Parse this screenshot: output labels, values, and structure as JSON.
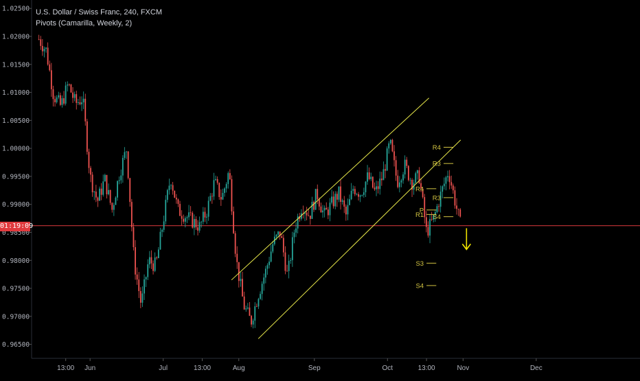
{
  "header": {
    "symbol_title": "U.S. Dollar / Swiss Franc, 240, FXCM",
    "indicator_title": "Pivots (Camarilla, Weekly, 2)"
  },
  "price_label": "01:19:09",
  "colors": {
    "background": "#000000",
    "candle_up": "#26a69a",
    "candle_down": "#ef5350",
    "channel": "#e8e84a",
    "pivot_lines": "#d4c542",
    "price_line": "#e03a3e",
    "arrow": "#f2e600",
    "axis_text": "#b2b5be"
  },
  "chart_data": {
    "type": "line",
    "title": "U.S. Dollar / Swiss Franc, 240, FXCM",
    "subtitle": "Pivots (Camarilla, Weekly, 2)",
    "y_axis": {
      "position": "left",
      "ticks": [
        "1.02500",
        "1.02000",
        "1.01500",
        "1.01000",
        "1.00500",
        "1.00000",
        "0.99500",
        "0.99000",
        "0.98500",
        "0.98000",
        "0.97500",
        "0.97000",
        "0.96500"
      ],
      "range": [
        0.9625,
        1.0265
      ]
    },
    "x_axis": {
      "ticks": [
        "13:00",
        "Jun",
        "Jul",
        "13:00",
        "Aug",
        "Sep",
        "Oct",
        "13:00",
        "Nov",
        "Dec"
      ]
    },
    "price_series": {
      "name": "USDCHF",
      "x": [
        "May 11",
        "May 14",
        "May 17",
        "May 20",
        "May 23",
        "May 26",
        "May 29",
        "Jun 01",
        "Jun 04",
        "Jun 07",
        "Jun 10",
        "Jun 13",
        "Jun 16",
        "Jun 19",
        "Jun 22",
        "Jun 25",
        "Jun 28",
        "Jul 01",
        "Jul 04",
        "Jul 07",
        "Jul 10",
        "Jul 13",
        "Jul 16",
        "Jul 19",
        "Jul 22",
        "Jul 25",
        "Jul 28",
        "Jul 31",
        "Aug 03",
        "Aug 06",
        "Aug 09",
        "Aug 12",
        "Aug 15",
        "Aug 18",
        "Aug 21",
        "Aug 24",
        "Aug 27",
        "Aug 30",
        "Sep 02",
        "Sep 05",
        "Sep 08",
        "Sep 11",
        "Sep 14",
        "Sep 17",
        "Sep 20",
        "Sep 23",
        "Sep 26",
        "Sep 29",
        "Oct 02",
        "Oct 05",
        "Oct 08",
        "Oct 11",
        "Oct 14",
        "Oct 17",
        "Oct 20",
        "Oct 23",
        "Oct 26",
        "Oct 29",
        "Oct 31"
      ],
      "values": [
        1.0195,
        1.0175,
        1.0095,
        1.0075,
        1.0115,
        1.008,
        1.009,
        0.995,
        0.9905,
        0.9945,
        0.989,
        0.9955,
        1.0,
        0.98,
        0.972,
        0.98,
        0.979,
        0.987,
        0.995,
        0.989,
        0.988,
        0.987,
        0.986,
        0.989,
        0.994,
        0.991,
        0.996,
        0.98,
        0.972,
        0.969,
        0.974,
        0.978,
        0.983,
        0.985,
        0.977,
        0.986,
        0.99,
        0.988,
        0.992,
        0.988,
        0.99,
        0.992,
        0.988,
        0.993,
        0.992,
        0.995,
        0.992,
        0.995,
        1.001,
        0.994,
        0.997,
        0.994,
        0.995,
        0.985,
        0.9875,
        0.992,
        0.996,
        0.99,
        0.9862
      ]
    },
    "current_price": 0.9862,
    "channel": {
      "upper": {
        "from": [
          "Jul 29",
          0.9765
        ],
        "to": [
          "Oct 18",
          1.009
        ]
      },
      "lower": {
        "from": [
          "Aug 09",
          0.966
        ],
        "to": [
          "Oct 31",
          1.0015
        ]
      }
    },
    "pivot_levels": [
      {
        "label": "R4",
        "value": 1.0002,
        "from": "Oct 24",
        "to": "Oct 28"
      },
      {
        "label": "R3",
        "value": 0.9973,
        "from": "Oct 24",
        "to": "Oct 28"
      },
      {
        "label": "R4",
        "value": 0.9928,
        "from": "Oct 17",
        "to": "Oct 21"
      },
      {
        "label": "R3",
        "value": 0.9912,
        "from": "Oct 24",
        "to": "Oct 28"
      },
      {
        "label": "P",
        "value": 0.989,
        "from": "Oct 17",
        "to": "Oct 21"
      },
      {
        "label": "R1",
        "value": 0.9882,
        "from": "Oct 17",
        "to": "Oct 21"
      },
      {
        "label": "S4",
        "value": 0.9878,
        "from": "Oct 24",
        "to": "Oct 28"
      },
      {
        "label": "S3",
        "value": 0.9795,
        "from": "Oct 17",
        "to": "Oct 21"
      },
      {
        "label": "S4",
        "value": 0.9755,
        "from": "Oct 17",
        "to": "Oct 21"
      }
    ],
    "annotation": {
      "type": "arrow-down",
      "at": [
        "Nov 01",
        0.9855
      ]
    },
    "grid": false,
    "legend": "top-left"
  }
}
